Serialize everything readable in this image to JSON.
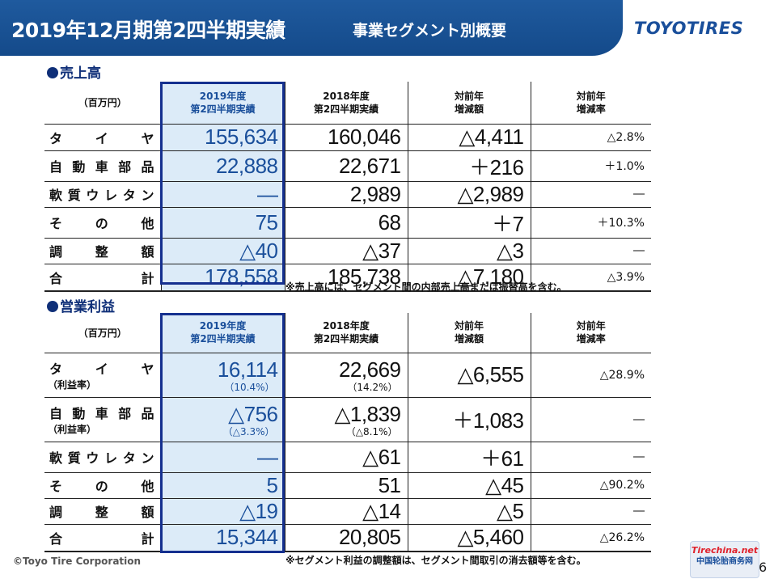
{
  "header": {
    "title": "2019年12月期第2四半期実績",
    "subtitle": "事業セグメント別概要",
    "logo": "TOYOTIRES"
  },
  "sales": {
    "section_title": "売上高",
    "unit": "（百万円）",
    "columns": [
      {
        "line1": "2019年度",
        "line2": "第2四半期実績"
      },
      {
        "line1": "2018年度",
        "line2": "第2四半期実績"
      },
      {
        "line1": "対前年",
        "line2": "増減額"
      },
      {
        "line1": "対前年",
        "line2": "増減率"
      }
    ],
    "rows": [
      {
        "label": [
          "タ",
          "イ",
          "ヤ"
        ],
        "c2019": "155,634",
        "c2018": "160,046",
        "diff": "△4,411",
        "rate": "△2.8%"
      },
      {
        "label": [
          "自",
          "動",
          "車",
          "部",
          "品"
        ],
        "c2019": "22,888",
        "c2018": "22,671",
        "diff": "＋216",
        "rate": "＋1.0%"
      },
      {
        "label": [
          "軟",
          "質",
          "ウ",
          "レ",
          "タ",
          "ン"
        ],
        "c2019": "―",
        "c2018": "2,989",
        "diff": "△2,989",
        "rate": "―"
      },
      {
        "label": [
          "そ",
          "の",
          "他"
        ],
        "c2019": "75",
        "c2018": "68",
        "diff": "＋7",
        "rate": "＋10.3%"
      },
      {
        "label": [
          "調",
          "整",
          "額"
        ],
        "c2019": "△40",
        "c2018": "△37",
        "diff": "△3",
        "rate": "―"
      },
      {
        "label": [
          "合",
          "計"
        ],
        "c2019": "178,558",
        "c2018": "185,738",
        "diff": "△7,180",
        "rate": "△3.9%"
      }
    ],
    "note": "※売上高には、セグメント間の内部売上高または振替高を含む。"
  },
  "profit": {
    "section_title": "営業利益",
    "unit": "（百万円）",
    "columns": [
      {
        "line1": "2019年度",
        "line2": "第2四半期実績"
      },
      {
        "line1": "2018年度",
        "line2": "第2四半期実績"
      },
      {
        "line1": "対前年",
        "line2": "増減額"
      },
      {
        "line1": "対前年",
        "line2": "増減率"
      }
    ],
    "rows": [
      {
        "label": [
          "タ",
          "イ",
          "ヤ"
        ],
        "sublabel": "（利益率）",
        "c2019": "16,114",
        "c2019_sub": "（10.4%）",
        "c2018": "22,669",
        "c2018_sub": "（14.2%）",
        "diff": "△6,555",
        "rate": "△28.9%"
      },
      {
        "label": [
          "自",
          "動",
          "車",
          "部",
          "品"
        ],
        "sublabel": "（利益率）",
        "c2019": "△756",
        "c2019_sub": "（△3.3%）",
        "c2018": "△1,839",
        "c2018_sub": "（△8.1%）",
        "diff": "＋1,083",
        "rate": "―"
      },
      {
        "label": [
          "軟",
          "質",
          "ウ",
          "レ",
          "タ",
          "ン"
        ],
        "c2019": "―",
        "c2018": "△61",
        "diff": "＋61",
        "rate": "―"
      },
      {
        "label": [
          "そ",
          "の",
          "他"
        ],
        "c2019": "5",
        "c2018": "51",
        "diff": "△45",
        "rate": "△90.2%"
      },
      {
        "label": [
          "調",
          "整",
          "額"
        ],
        "c2019": "△19",
        "c2018": "△14",
        "diff": "△5",
        "rate": "―"
      },
      {
        "label": [
          "合",
          "計"
        ],
        "c2019": "15,344",
        "c2018": "20,805",
        "diff": "△5,460",
        "rate": "△26.2%"
      }
    ],
    "note": "※セグメント利益の調整額は、セグメント間取引の消去額等を含む。"
  },
  "footer": {
    "copyright": "©Toyo Tire Corporation",
    "page": "6",
    "watermark_brand": "Tirechina.net",
    "watermark_text": "中国轮胎商务网"
  }
}
